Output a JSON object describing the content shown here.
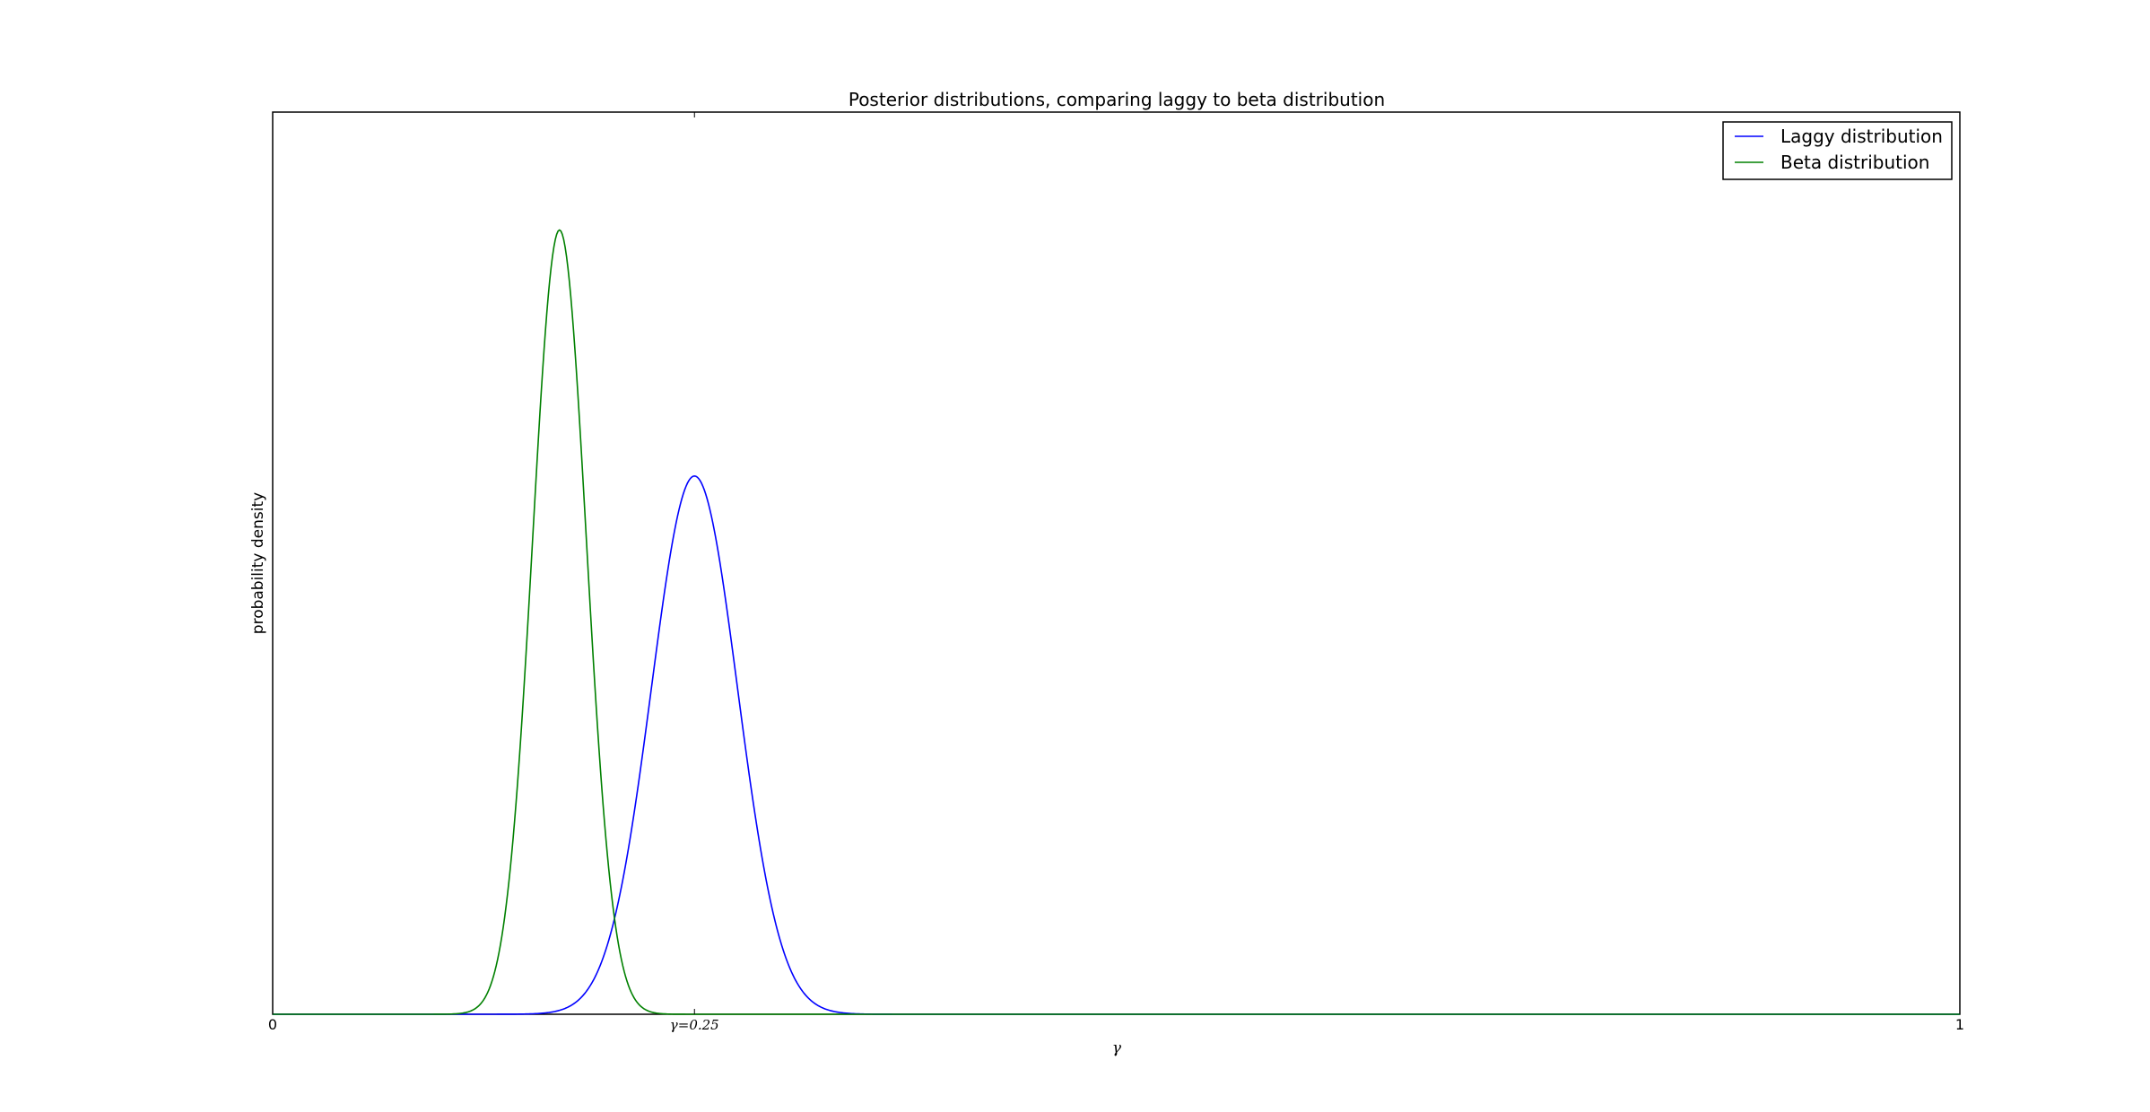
{
  "chart_data": {
    "type": "line",
    "title": "Posterior distributions, comparing laggy to beta distribution",
    "xlabel": "γ",
    "ylabel": "probability density",
    "xlim": [
      0,
      1
    ],
    "ylim": [
      0,
      17.6
    ],
    "xticks": [
      {
        "value": 0,
        "label": "0"
      },
      {
        "value": 0.25,
        "label": "γ=0.25"
      },
      {
        "value": 1,
        "label": "1"
      }
    ],
    "grid": false,
    "legend_position": "top-right",
    "series": [
      {
        "name": "Laggy distribution",
        "color": "#0000ff",
        "mean": 0.25,
        "sd": 0.0255,
        "peak": 10.5
      },
      {
        "name": "Beta distribution",
        "color": "#008000",
        "mean": 0.17,
        "sd": 0.0159,
        "peak": 15.3
      }
    ]
  }
}
